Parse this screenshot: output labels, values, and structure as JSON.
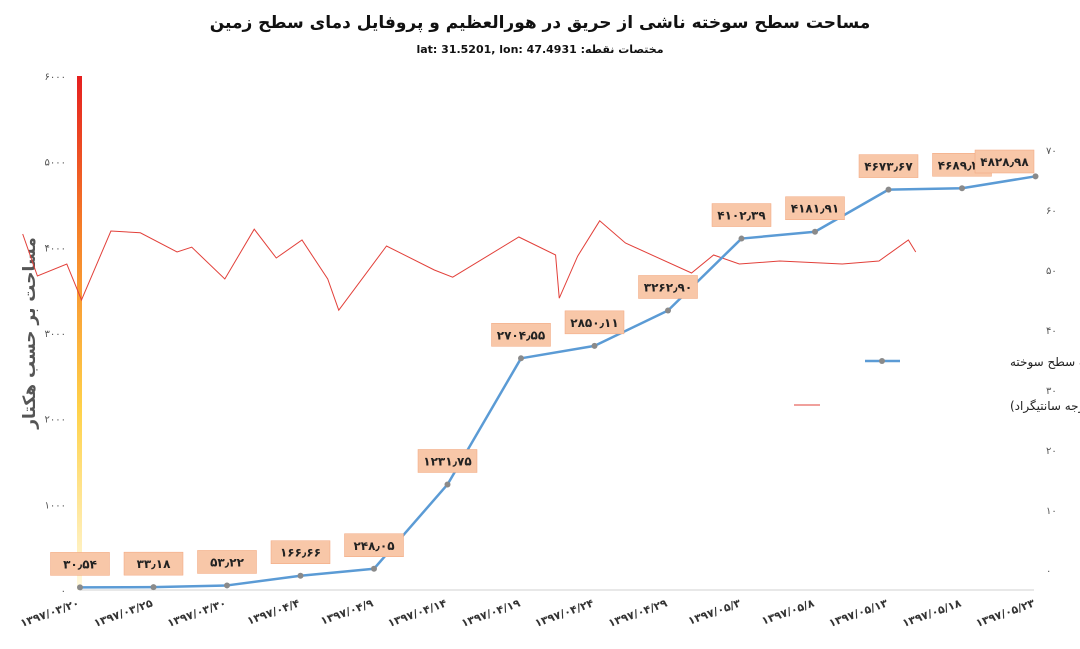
{
  "chart_data": {
    "type": "line",
    "title": "مساحت سطح سوخته ناشی از حریق در هورالعظیم و  پروفایل دمای سطح زمین",
    "subtitle": "مختصات نقطه: lat: 31.5201, lon: 47.4931",
    "ylabel": "مساحت بر حسب هکتار",
    "ylim": [
      0,
      6000
    ],
    "y2lim": [
      0,
      70
    ],
    "yticks": [
      "۰",
      "۱۰۰۰",
      "۲۰۰۰",
      "۳۰۰۰",
      "۴۰۰۰",
      "۵۰۰۰",
      "۶۰۰۰"
    ],
    "y2ticks": [
      "۰",
      "۱۰",
      "۲۰",
      "۳۰",
      "۴۰",
      "۵۰",
      "۶۰",
      "۷۰"
    ],
    "categories": [
      "۱۳۹۷/۰۳/۲۰",
      "۱۳۹۷/۰۳/۲۵",
      "۱۳۹۷/۰۳/۳۰",
      "۱۳۹۷/۰۴/۴",
      "۱۳۹۷/۰۴/۹",
      "۱۳۹۷/۰۴/۱۴",
      "۱۳۹۷/۰۴/۱۹",
      "۱۳۹۷/۰۴/۲۴",
      "۱۳۹۷/۰۴/۲۹",
      "۱۳۹۷/۰۵/۳",
      "۱۳۹۷/۰۵/۸",
      "۱۳۹۷/۰۵/۱۳",
      "۱۳۹۷/۰۵/۱۸",
      "۱۳۹۷/۰۵/۲۳"
    ],
    "burned_area": {
      "name": "مساحت سطح سوخته",
      "color": "#5b9bd5",
      "points": [
        {
          "x": 0,
          "y": 30.54,
          "label": "۳۰٫۵۴"
        },
        {
          "x": 1,
          "y": 33.18,
          "label": "۳۳٫۱۸"
        },
        {
          "x": 2,
          "y": 53.22,
          "label": "۵۳٫۲۲"
        },
        {
          "x": 3,
          "y": 166.66,
          "label": "۱۶۶٫۶۶"
        },
        {
          "x": 4,
          "y": 248.05,
          "label": "۲۴۸٫۰۵"
        },
        {
          "x": 5,
          "y": 1231.75,
          "label": "۱۲۳۱٫۷۵"
        },
        {
          "x": 6,
          "y": 2704.55,
          "label": "۲۷۰۴٫۵۵"
        },
        {
          "x": 7,
          "y": 2850.11,
          "label": "۲۸۵۰٫۱۱"
        },
        {
          "x": 8,
          "y": 3262.9,
          "label": "۳۲۶۲٫۹۰"
        },
        {
          "x": 9,
          "y": 4102.39,
          "label": "۴۱۰۲٫۳۹"
        },
        {
          "x": 10,
          "y": 4181.91,
          "label": "۴۱۸۱٫۹۱"
        },
        {
          "x": 11,
          "y": 4673.67,
          "label": "۴۶۷۳٫۶۷"
        },
        {
          "x": 12,
          "y": 4689.47,
          "label": "۴۶۸۹٫۴۷"
        },
        {
          "x": 13,
          "y": 4828.98,
          "label": "۴۸۲۸٫۹۸"
        }
      ]
    },
    "surface_temp": {
      "name": "دمای سطح زمین (درجه سانتیگراد)",
      "color": "#e2403a",
      "points": [
        [
          -0.8,
          56
        ],
        [
          -0.6,
          49
        ],
        [
          -0.2,
          51
        ],
        [
          0,
          45
        ],
        [
          0.4,
          56.5
        ],
        [
          0.8,
          56.2
        ],
        [
          1.3,
          53
        ],
        [
          1.5,
          53.8
        ],
        [
          1.95,
          48.5
        ],
        [
          2.35,
          56.8
        ],
        [
          2.65,
          52
        ],
        [
          3.0,
          55
        ],
        [
          3.35,
          48.5
        ],
        [
          3.5,
          43.3
        ],
        [
          4.15,
          54
        ],
        [
          4.8,
          50
        ],
        [
          5.05,
          48.8
        ],
        [
          5.95,
          55.5
        ],
        [
          6.45,
          52.5
        ],
        [
          6.5,
          45.3
        ],
        [
          6.75,
          52.3
        ],
        [
          7.05,
          58.2
        ],
        [
          7.4,
          54.5
        ],
        [
          8.3,
          49.5
        ],
        [
          8.6,
          52.5
        ],
        [
          8.95,
          51
        ],
        [
          9.5,
          51.5
        ],
        [
          10.35,
          51
        ],
        [
          10.85,
          51.5
        ],
        [
          11.25,
          55
        ],
        [
          11.35,
          53
        ]
      ]
    },
    "legend": [
      "مساحت سطح سوخته",
      "دمای سطح زمین (درجه سانتیگراد)"
    ],
    "legend_position": "right",
    "grid": false
  }
}
